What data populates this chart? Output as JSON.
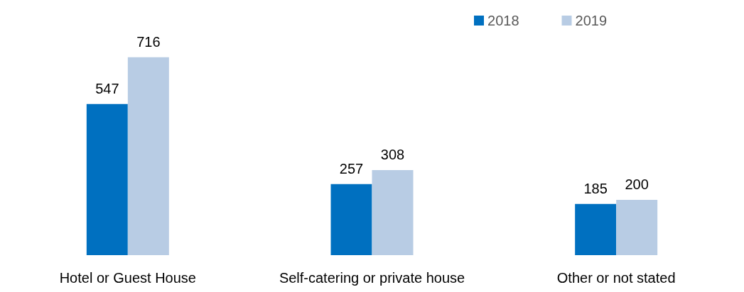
{
  "chart_data": {
    "type": "bar",
    "categories": [
      "Hotel or Guest House",
      "Self-catering or private house",
      "Other or not stated"
    ],
    "series": [
      {
        "name": "2018",
        "color": "#0070c0",
        "values": [
          547,
          257,
          185
        ]
      },
      {
        "name": "2019",
        "color": "#b8cce4",
        "values": [
          716,
          308,
          200
        ]
      }
    ],
    "data_labels": true,
    "legend": "top right"
  }
}
